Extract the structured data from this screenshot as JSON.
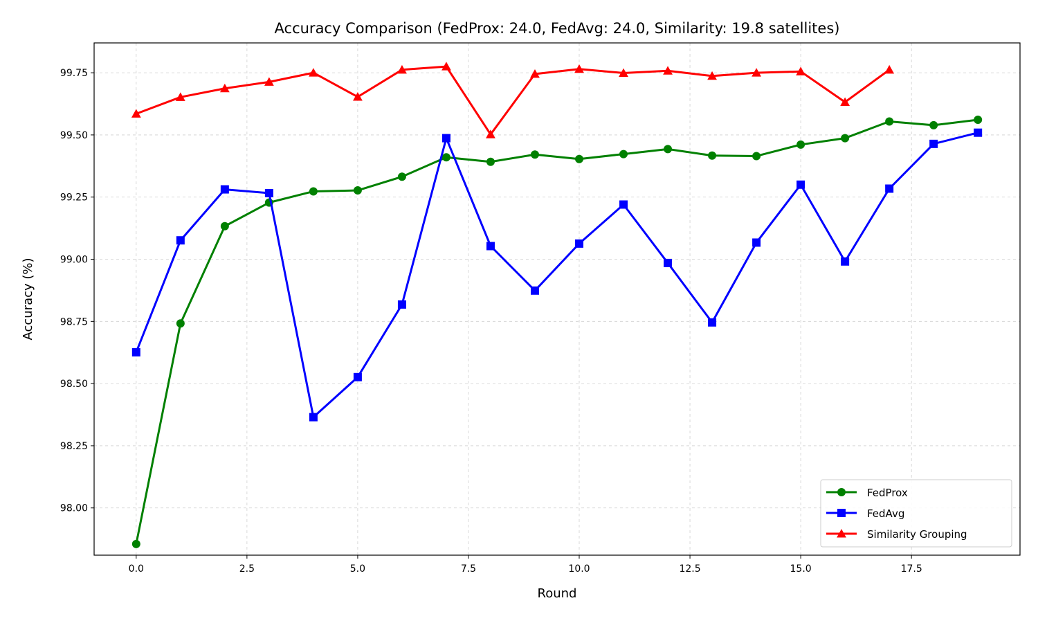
{
  "chart_data": {
    "type": "line",
    "title": "Accuracy Comparison (FedProx: 24.0, FedAvg: 24.0, Similarity: 19.8 satellites)",
    "xlabel": "Round",
    "ylabel": "Accuracy (%)",
    "xlim": [
      -0.95,
      19.95
    ],
    "ylim": [
      97.81,
      99.87
    ],
    "xticks": [
      "0.0",
      "2.5",
      "5.0",
      "7.5",
      "10.0",
      "12.5",
      "15.0",
      "17.5"
    ],
    "yticks": [
      "98.00",
      "98.25",
      "98.50",
      "98.75",
      "99.00",
      "99.25",
      "99.50",
      "99.75"
    ],
    "grid": true,
    "legend_position": "lower-right",
    "series": [
      {
        "name": "FedProx",
        "color": "#008000",
        "marker": "circle",
        "x": [
          0,
          1,
          2,
          3,
          4,
          5,
          6,
          7,
          8,
          9,
          10,
          11,
          12,
          13,
          14,
          15,
          16,
          17,
          18,
          19
        ],
        "values": [
          97.855,
          98.742,
          99.133,
          99.228,
          99.273,
          99.277,
          99.332,
          99.41,
          99.392,
          99.421,
          99.403,
          99.423,
          99.443,
          99.417,
          99.415,
          99.461,
          99.487,
          99.554,
          99.539,
          99.561
        ]
      },
      {
        "name": "FedAvg",
        "color": "#0000ff",
        "marker": "square",
        "x": [
          0,
          1,
          2,
          3,
          4,
          5,
          6,
          7,
          8,
          9,
          10,
          11,
          12,
          13,
          14,
          15,
          16,
          17,
          18,
          19
        ],
        "values": [
          98.626,
          99.076,
          99.281,
          99.266,
          98.365,
          98.526,
          98.818,
          99.487,
          99.053,
          98.874,
          99.063,
          99.22,
          98.985,
          98.746,
          99.067,
          99.3,
          98.991,
          99.284,
          99.464,
          99.509
        ]
      },
      {
        "name": "Similarity Grouping",
        "color": "#ff0000",
        "marker": "triangle",
        "x": [
          0,
          1,
          2,
          3,
          4,
          5,
          6,
          7,
          8,
          9,
          10,
          11,
          12,
          13,
          14,
          15,
          16,
          17
        ],
        "values": [
          99.585,
          99.652,
          99.687,
          99.713,
          99.75,
          99.653,
          99.762,
          99.775,
          99.502,
          99.745,
          99.765,
          99.749,
          99.758,
          99.737,
          99.75,
          99.755,
          99.632,
          99.762
        ]
      }
    ]
  }
}
